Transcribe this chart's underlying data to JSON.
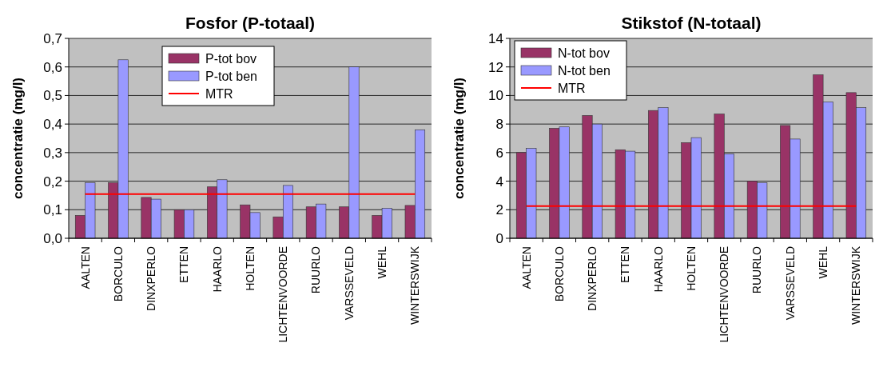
{
  "chart_data": [
    {
      "type": "bar",
      "title": "Fosfor (P-totaal)",
      "ylabel": "concentratie  (mg/l)",
      "categories": [
        "AALTEN",
        "BORCULO",
        "DINXPERLO",
        "ETTEN",
        "HAARLO",
        "HOLTEN",
        "LICHTENVOORDE",
        "RUURLO",
        "VARSSEVELD",
        "WEHL",
        "WINTERSWIJK"
      ],
      "series": [
        {
          "name": "P-tot bov",
          "color": "#993366",
          "values": [
            0.08,
            0.195,
            0.143,
            0.1,
            0.18,
            0.117,
            0.075,
            0.11,
            0.11,
            0.08,
            0.115
          ]
        },
        {
          "name": "P-tot ben",
          "color": "#9999ff",
          "values": [
            0.195,
            0.625,
            0.137,
            0.1,
            0.205,
            0.09,
            0.185,
            0.12,
            0.6,
            0.105,
            0.38
          ]
        },
        {
          "name": "MTR",
          "type": "line",
          "color": "#ff0000",
          "values": [
            0.155,
            0.155,
            0.155,
            0.155,
            0.155,
            0.155,
            0.155,
            0.155,
            0.155,
            0.155,
            0.155
          ]
        }
      ],
      "ylim": [
        0,
        0.7
      ],
      "yticks": [
        {
          "value": 0,
          "label": "0,0"
        },
        {
          "value": 0.1,
          "label": "0,1"
        },
        {
          "value": 0.2,
          "label": "0,2"
        },
        {
          "value": 0.3,
          "label": "0,3"
        },
        {
          "value": 0.4,
          "label": "0,4"
        },
        {
          "value": 0.5,
          "label": "0,5"
        },
        {
          "value": 0.6,
          "label": "0,6"
        },
        {
          "value": 0.7,
          "label": "0,7"
        }
      ],
      "grid": "y",
      "legend": "top",
      "marker": "none"
    },
    {
      "type": "bar",
      "title": "Stikstof (N-totaal)",
      "ylabel": "concentratie  (mg/l)",
      "categories": [
        "AALTEN",
        "BORCULO",
        "DINXPERLO",
        "ETTEN",
        "HAARLO",
        "HOLTEN",
        "LICHTENVOORDE",
        "RUURLO",
        "VARSSEVELD",
        "WEHL",
        "WINTERSWIJK"
      ],
      "series": [
        {
          "name": "N-tot bov",
          "color": "#993366",
          "values": [
            6.0,
            7.7,
            8.6,
            6.2,
            8.95,
            6.7,
            8.7,
            4.0,
            7.9,
            11.45,
            10.2
          ]
        },
        {
          "name": "N-tot ben",
          "color": "#9999ff",
          "values": [
            6.3,
            7.8,
            8.0,
            6.1,
            9.15,
            7.05,
            5.9,
            3.9,
            6.95,
            9.55,
            9.15
          ]
        },
        {
          "name": "MTR",
          "type": "line",
          "color": "#ff0000",
          "values": [
            2.25,
            2.25,
            2.25,
            2.25,
            2.25,
            2.25,
            2.25,
            2.25,
            2.25,
            2.25,
            2.25
          ]
        }
      ],
      "ylim": [
        0,
        14
      ],
      "yticks": [
        0,
        2,
        4,
        6,
        8,
        10,
        12,
        14
      ],
      "grid": "y",
      "legend": "top left",
      "marker": "none"
    }
  ]
}
